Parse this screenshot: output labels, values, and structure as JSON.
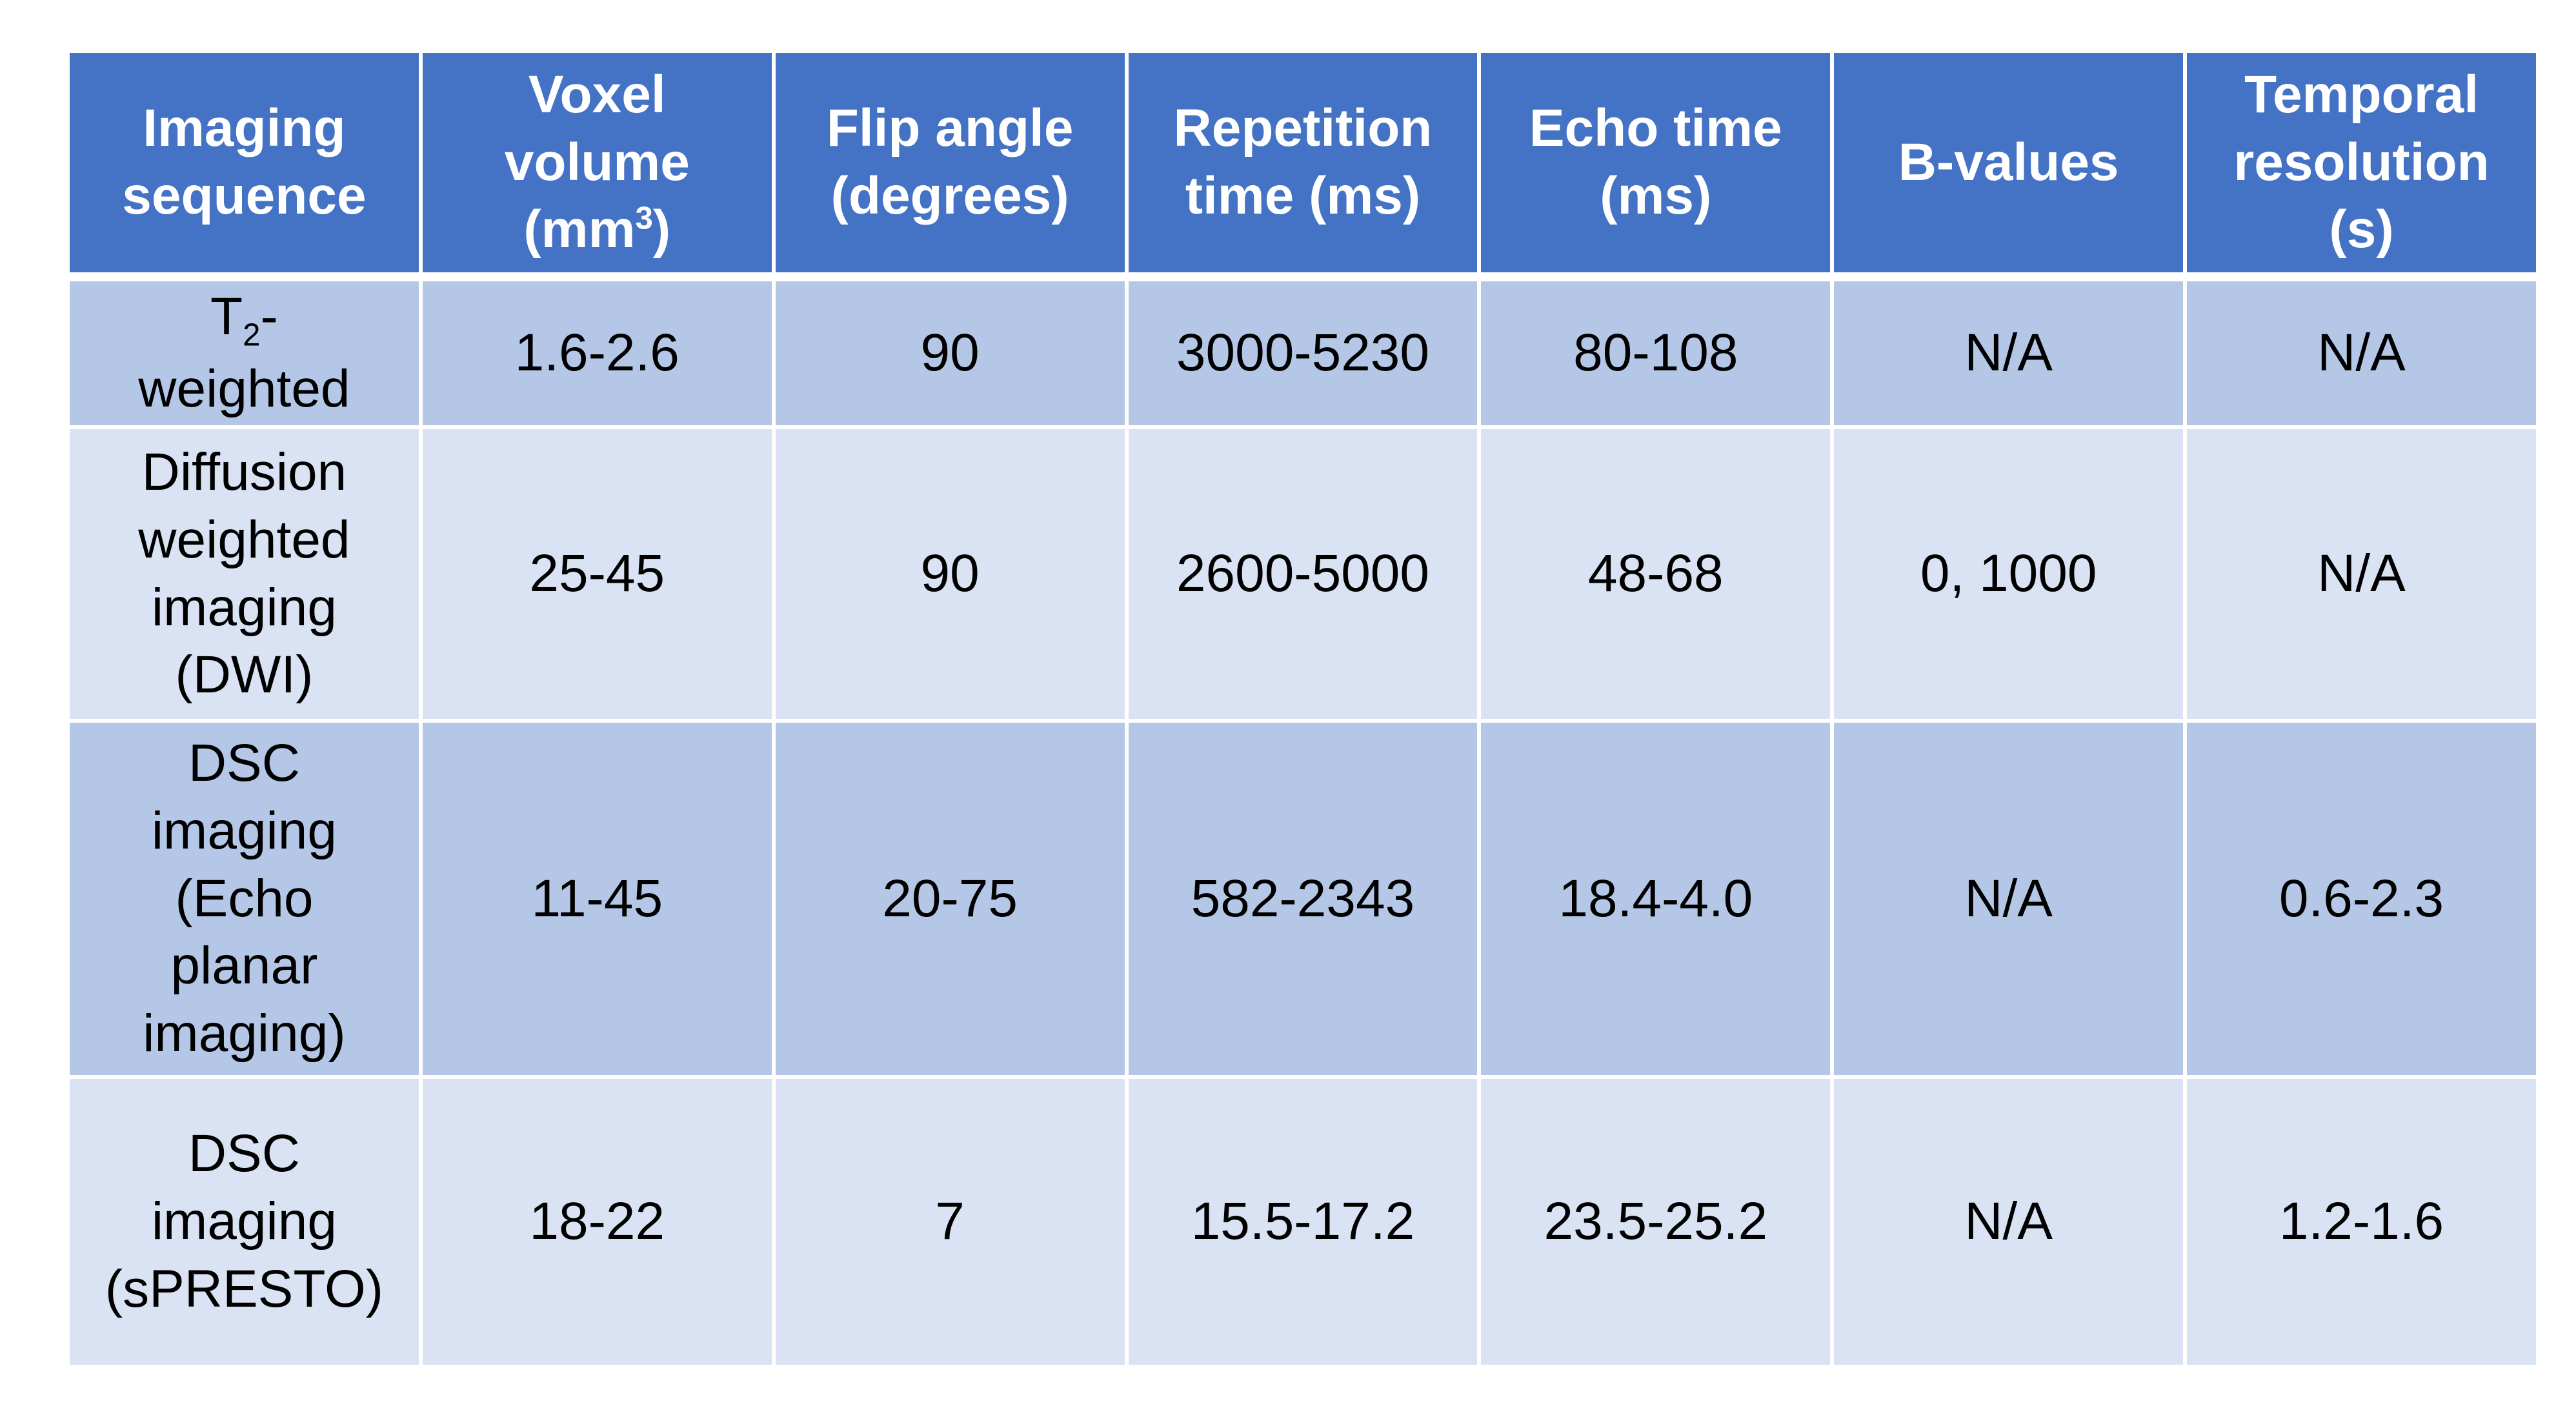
{
  "table": {
    "header": [
      "Imaging sequence",
      {
        "text": "Voxel volume (mm",
        "sup": "3",
        "after": ")"
      },
      "Flip angle (degrees)",
      "Repetition time (ms)",
      "Echo time (ms)",
      "B-values",
      "Temporal resolution (s)"
    ],
    "rows": [
      [
        {
          "text": "T",
          "sub": "2",
          "after": "-weighted"
        },
        "1.6-2.6",
        "90",
        "3000-5230",
        "80-108",
        "N/A",
        "N/A"
      ],
      [
        "Diffusion weighted imaging (DWI)",
        "25-45",
        "90",
        "2600-5000",
        "48-68",
        "0, 1000",
        "N/A"
      ],
      [
        "DSC imaging (Echo planar imaging)",
        "11-45",
        "20-75",
        "582-2343",
        "18.4-4.0",
        "N/A",
        "0.6-2.3"
      ],
      [
        "DSC imaging (sPRESTO)",
        "18-22",
        "7",
        "15.5-17.2",
        "23.5-25.2",
        "N/A",
        "1.2-1.6"
      ]
    ]
  }
}
